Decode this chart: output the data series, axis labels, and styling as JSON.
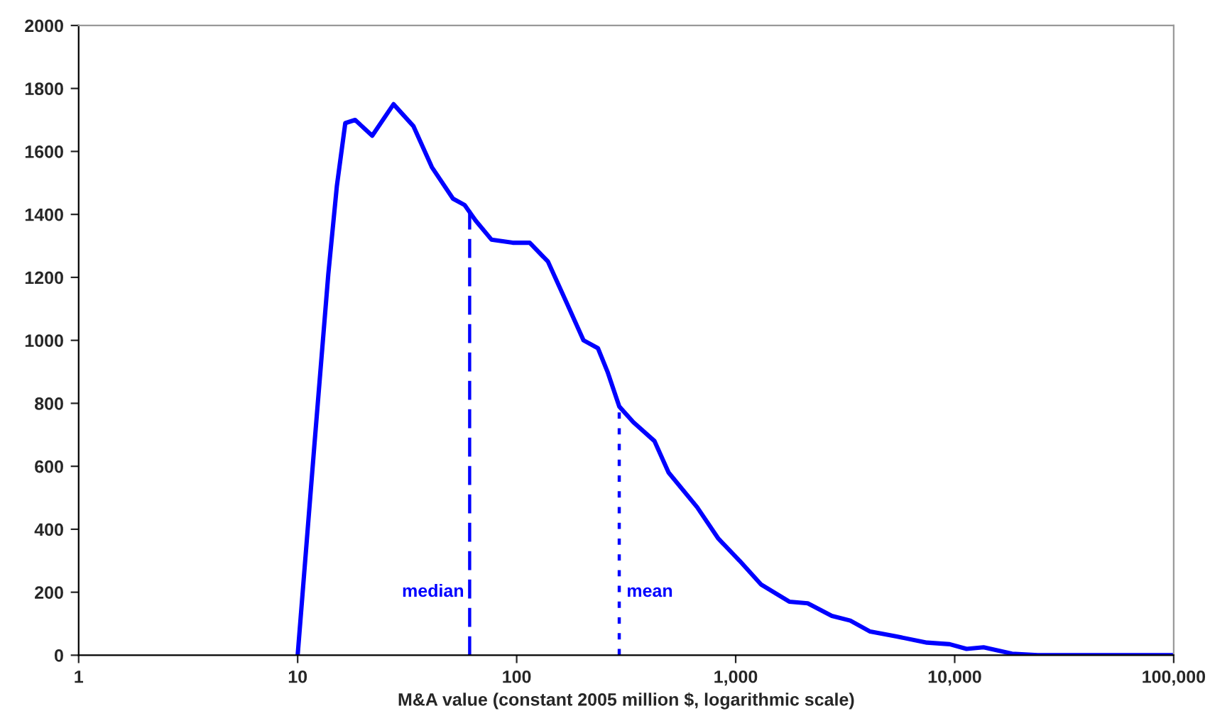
{
  "chart_data": {
    "type": "line",
    "xlabel": "M&A value (constant 2005 million $, logarithmic scale)",
    "log": "x",
    "xlim": [
      1,
      100000
    ],
    "xticks": [
      {
        "value": 1,
        "label": "1"
      },
      {
        "value": 10,
        "label": "10"
      },
      {
        "value": 100,
        "label": "100"
      },
      {
        "value": 1000,
        "label": "1,000"
      },
      {
        "value": 10000,
        "label": "10,000"
      },
      {
        "value": 100000,
        "label": "100,000"
      }
    ],
    "ylim": [
      0,
      2000
    ],
    "yticks": [
      0,
      200,
      400,
      600,
      800,
      1000,
      1200,
      1400,
      1600,
      1800,
      2000
    ],
    "grid": false,
    "legend": false,
    "series": [
      {
        "color": "#0000ff",
        "line_style": "solid",
        "x": [
          10,
          11.9,
          13.8,
          15.1,
          16.5,
          18.3,
          21.9,
          27.4,
          33.8,
          41,
          51.2,
          57.8,
          65,
          76.7,
          95.9,
          114.7,
          139,
          169,
          202,
          235,
          260,
          294,
          341,
          426,
          494,
          667,
          834,
          1042,
          1304,
          1757,
          2133,
          2748,
          3336,
          4112,
          5380,
          7470,
          9480,
          11330,
          13550,
          18270,
          23900,
          50400,
          100000
        ],
        "values": [
          0,
          660,
          1210,
          1490,
          1690,
          1700,
          1650,
          1750,
          1680,
          1550,
          1450,
          1430,
          1380,
          1320,
          1310,
          1310,
          1250,
          1120,
          1000,
          975,
          900,
          790,
          740,
          680,
          580,
          470,
          370,
          300,
          225,
          170,
          165,
          125,
          110,
          75,
          60,
          40,
          35,
          20,
          25,
          5,
          0,
          0,
          0
        ]
      },
      {
        "name": "median",
        "color": "#0000ff",
        "line_style": "dashed",
        "x": [
          61,
          61
        ],
        "values": [
          0,
          1420
        ]
      },
      {
        "name": "mean",
        "color": "#0000ff",
        "line_style": "dotted",
        "x": [
          294,
          294
        ],
        "values": [
          0,
          790
        ]
      }
    ]
  }
}
